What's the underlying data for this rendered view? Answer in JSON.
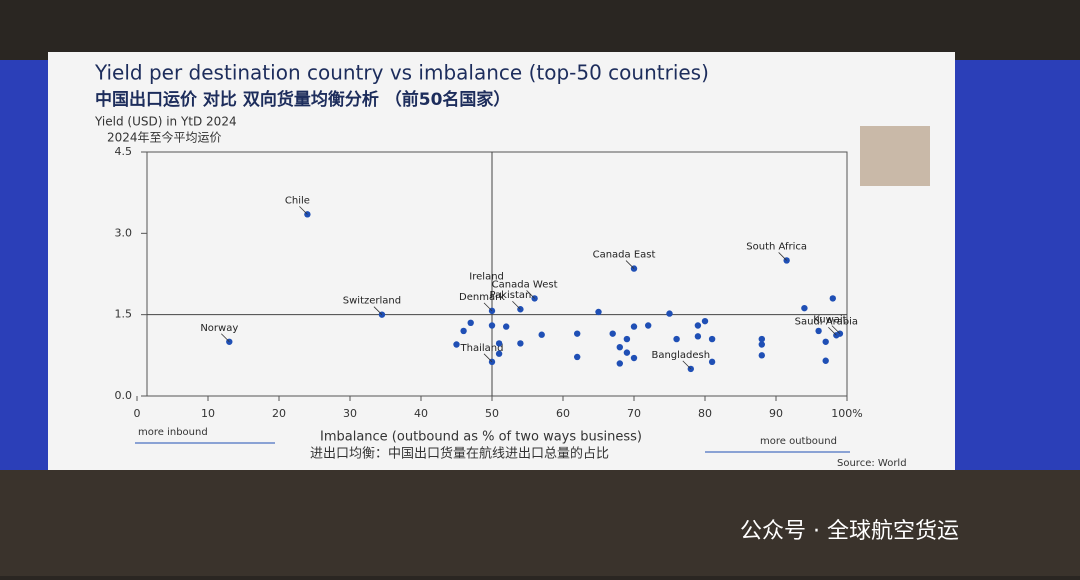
{
  "chart_data": {
    "type": "scatter",
    "title": "Yield per destination country vs imbalance (top-50 countries)",
    "subtitle": "中国出口运价 对比 双向货量均衡分析 （前50名国家）",
    "y_label": "Yield (USD) in YtD 2024",
    "y_label_cn": "2024年至今平均运价",
    "x_label": "Imbalance (outbound as % of two ways business)",
    "x_label_cn": "进出口均衡：中国出口货量在航线进出口总量的占比",
    "left_note": "more inbound",
    "right_note": "more outbound",
    "source": "Source: World",
    "watermark": "公众号 · 全球航空货运",
    "color": "#1f4fb5",
    "xlim": [
      0,
      100
    ],
    "ylim": [
      0,
      4.5
    ],
    "xticks": [
      0,
      10,
      20,
      30,
      40,
      50,
      60,
      70,
      80,
      90,
      {
        "value": 100,
        "label": "100%"
      }
    ],
    "yticks": [
      {
        "value": 0,
        "label": "0.0"
      },
      1.5,
      {
        "value": 3,
        "label": "3.0"
      },
      4.5
    ],
    "reference_x": 50,
    "reference_y": 1.5,
    "x": [
      24,
      13,
      34.5,
      70,
      91.5,
      56,
      54,
      99,
      98.5,
      50,
      78,
      98,
      94,
      80,
      79,
      79,
      81,
      81,
      88,
      88,
      88,
      97,
      97,
      96,
      72,
      70,
      75,
      65,
      62,
      67,
      68,
      69,
      70,
      68,
      69,
      76,
      62,
      57,
      52,
      51,
      51,
      54,
      50,
      47,
      46,
      45,
      50
    ],
    "values": [
      3.35,
      1.0,
      1.5,
      2.35,
      2.5,
      1.8,
      1.6,
      1.15,
      1.12,
      0.63,
      0.5,
      1.8,
      1.62,
      1.38,
      1.3,
      1.1,
      1.05,
      0.63,
      1.05,
      0.95,
      0.75,
      0.65,
      1.0,
      1.2,
      1.3,
      1.28,
      1.52,
      1.55,
      1.15,
      1.15,
      0.9,
      0.8,
      0.7,
      0.6,
      1.05,
      1.05,
      0.72,
      1.13,
      1.28,
      0.97,
      0.78,
      0.97,
      1.3,
      1.35,
      1.2,
      0.95,
      1.57
    ],
    "point_labels": [
      "Chile",
      "Norway",
      "Switzerland",
      "Canada East",
      "South Africa",
      "Canada West",
      "Pakistan",
      "Kuwait",
      "Saudi Arabia",
      "Thailand",
      "Bangladesh",
      null,
      null,
      null,
      null,
      null,
      null,
      null,
      null,
      null,
      null,
      null,
      null,
      null,
      null,
      null,
      null,
      null,
      null,
      null,
      null,
      null,
      null,
      null,
      null,
      null,
      null,
      null,
      null,
      null,
      null,
      null,
      null,
      null,
      null,
      null,
      "Denmark"
    ],
    "extra_labels": [
      "Ireland"
    ]
  }
}
